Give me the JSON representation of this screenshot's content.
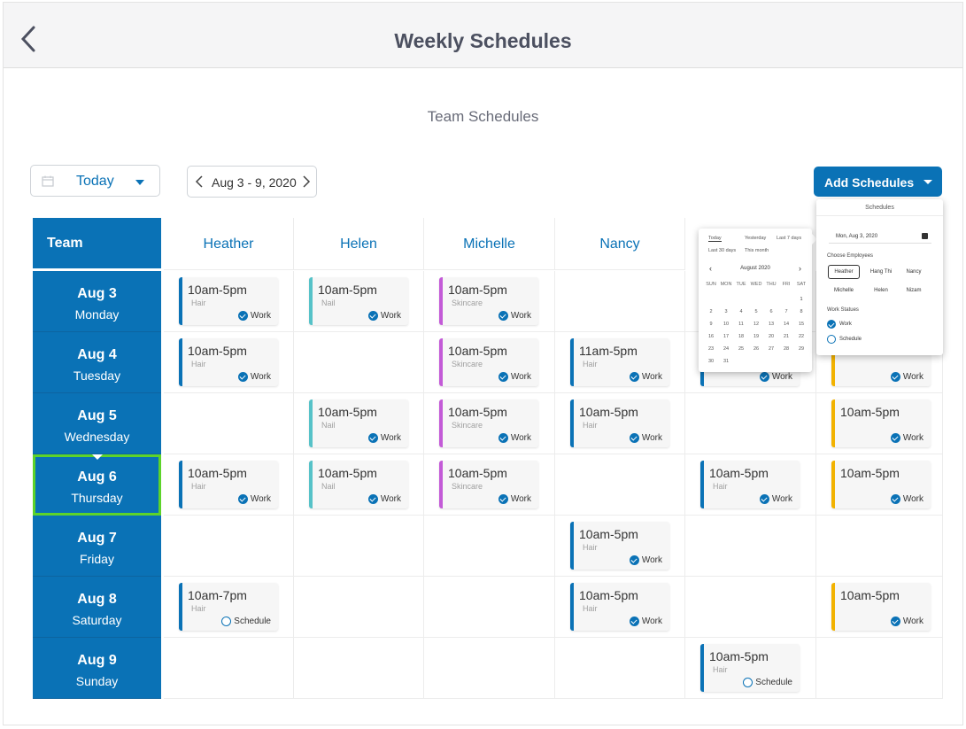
{
  "header": {
    "title": "Weekly Schedules"
  },
  "section_title": "Team Schedules",
  "controls": {
    "today_label": "Today",
    "date_range": "Aug  3 - 9, 2020",
    "add_button": "Add Schedules"
  },
  "team_label": "Team",
  "employees": [
    "Heather",
    "Helen",
    "Michelle",
    "Nancy",
    "Hang Thi",
    "Nizam"
  ],
  "days": [
    {
      "date": "Aug 3",
      "weekday": "Monday"
    },
    {
      "date": "Aug 4",
      "weekday": "Tuesday"
    },
    {
      "date": "Aug 5",
      "weekday": "Wednesday"
    },
    {
      "date": "Aug 6",
      "weekday": "Thursday"
    },
    {
      "date": "Aug 7",
      "weekday": "Friday"
    },
    {
      "date": "Aug 8",
      "weekday": "Saturday"
    },
    {
      "date": "Aug 9",
      "weekday": "Sunday"
    }
  ],
  "selected_day": 3,
  "colors": {
    "primary": "#0a72b6",
    "hair": "#0a72b6",
    "nail": "#56c2c8",
    "skincare": "#c35ad7",
    "yellow": "#f2b200",
    "selected": "#5dd32a"
  },
  "shifts": [
    {
      "day": 0,
      "emp": 0,
      "time": "10am-5pm",
      "category": "Hair",
      "status": "Work",
      "color": "#0a72b6"
    },
    {
      "day": 0,
      "emp": 1,
      "time": "10am-5pm",
      "category": "Nail",
      "status": "Work",
      "color": "#56c2c8"
    },
    {
      "day": 0,
      "emp": 2,
      "time": "10am-5pm",
      "category": "Skincare",
      "status": "Work",
      "color": "#c35ad7"
    },
    {
      "day": 1,
      "emp": 0,
      "time": "10am-5pm",
      "category": "Hair",
      "status": "Work",
      "color": "#0a72b6"
    },
    {
      "day": 1,
      "emp": 2,
      "time": "10am-5pm",
      "category": "Skincare",
      "status": "Work",
      "color": "#c35ad7"
    },
    {
      "day": 1,
      "emp": 3,
      "time": "11am-5pm",
      "category": "Hair",
      "status": "Work",
      "color": "#0a72b6"
    },
    {
      "day": 1,
      "emp": 4,
      "time": "",
      "category": "",
      "status": "Work",
      "color": "#0a72b6"
    },
    {
      "day": 1,
      "emp": 5,
      "time": "",
      "category": "",
      "status": "Work",
      "color": "#f2b200"
    },
    {
      "day": 2,
      "emp": 1,
      "time": "10am-5pm",
      "category": "Nail",
      "status": "Work",
      "color": "#56c2c8"
    },
    {
      "day": 2,
      "emp": 2,
      "time": "10am-5pm",
      "category": "Skincare",
      "status": "Work",
      "color": "#c35ad7"
    },
    {
      "day": 2,
      "emp": 3,
      "time": "10am-5pm",
      "category": "Hair",
      "status": "Work",
      "color": "#0a72b6"
    },
    {
      "day": 2,
      "emp": 5,
      "time": "10am-5pm",
      "category": "",
      "status": "Work",
      "color": "#f2b200"
    },
    {
      "day": 3,
      "emp": 0,
      "time": "10am-5pm",
      "category": "Hair",
      "status": "Work",
      "color": "#0a72b6"
    },
    {
      "day": 3,
      "emp": 1,
      "time": "10am-5pm",
      "category": "Nail",
      "status": "Work",
      "color": "#56c2c8"
    },
    {
      "day": 3,
      "emp": 2,
      "time": "10am-5pm",
      "category": "Skincare",
      "status": "Work",
      "color": "#c35ad7"
    },
    {
      "day": 3,
      "emp": 4,
      "time": "10am-5pm",
      "category": "Hair",
      "status": "Work",
      "color": "#0a72b6"
    },
    {
      "day": 3,
      "emp": 5,
      "time": "10am-5pm",
      "category": "",
      "status": "Work",
      "color": "#f2b200"
    },
    {
      "day": 4,
      "emp": 3,
      "time": "10am-5pm",
      "category": "Hair",
      "status": "Work",
      "color": "#0a72b6"
    },
    {
      "day": 5,
      "emp": 0,
      "time": "10am-7pm",
      "category": "Hair",
      "status": "Schedule",
      "color": "#0a72b6"
    },
    {
      "day": 5,
      "emp": 3,
      "time": "10am-5pm",
      "category": "Hair",
      "status": "Work",
      "color": "#0a72b6"
    },
    {
      "day": 5,
      "emp": 5,
      "time": "10am-5pm",
      "category": "",
      "status": "Work",
      "color": "#f2b200"
    },
    {
      "day": 6,
      "emp": 4,
      "time": "10am-5pm",
      "category": "Hair",
      "status": "Schedule",
      "color": "#0a72b6"
    }
  ],
  "date_picker": {
    "quick_tabs": [
      "Today",
      "Yesterday",
      "Last 7 days",
      "Last 30 days",
      "This month"
    ],
    "month_label": "August 2020",
    "weekdays": [
      "SUN",
      "MON",
      "TUE",
      "WED",
      "THU",
      "FRI",
      "SAT"
    ],
    "first_weekday": 6,
    "days_in_month": 31,
    "selected_date": 1
  },
  "schedules_panel": {
    "title": "Schedules",
    "date_value": "Mon, Aug 3, 2020",
    "choose_label": "Choose Employees",
    "employees": [
      "Heather",
      "Hang Thi",
      "Nancy",
      "Michelle",
      "Helen",
      "Nizam"
    ],
    "selected_employee": 0,
    "status_label": "Work Statues",
    "statuses": [
      {
        "label": "Work",
        "checked": true
      },
      {
        "label": "Schedule",
        "checked": false
      }
    ]
  }
}
